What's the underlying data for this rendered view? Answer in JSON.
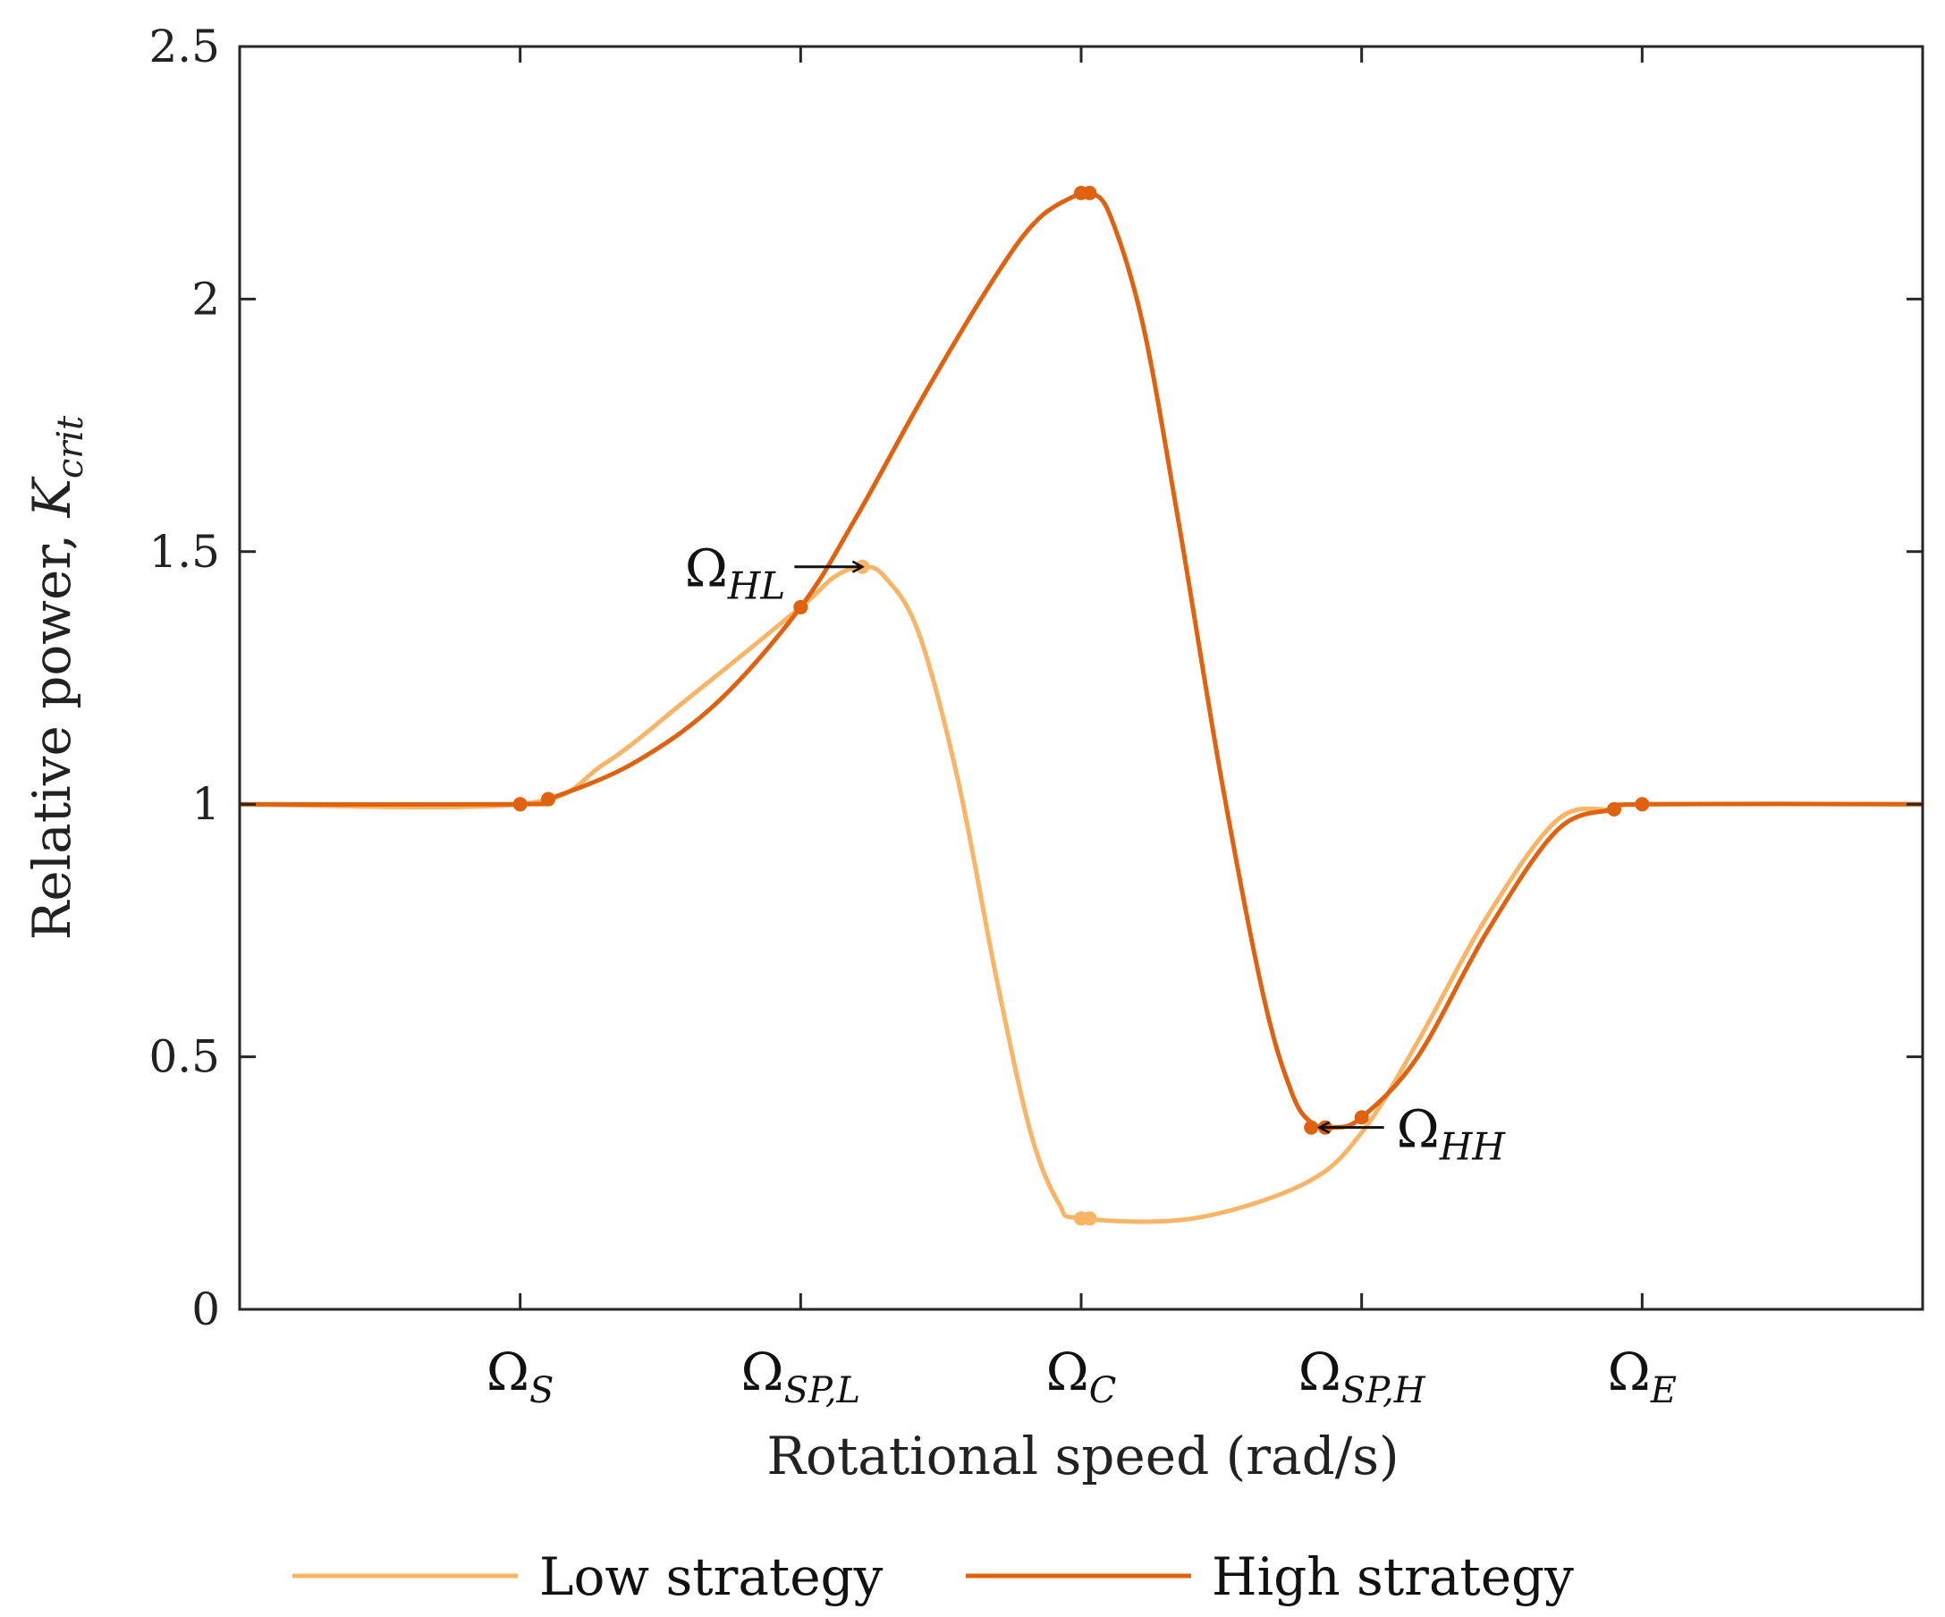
{
  "chart_data": {
    "type": "line",
    "xlabel": "Rotational speed (rad/s)",
    "ylabel_text": "Relative power, ",
    "ylabel_symbol": "K",
    "ylabel_subscript": "crit",
    "ylim": [
      0,
      2.5
    ],
    "xlim": [
      0,
      6
    ],
    "yticks": [
      0,
      0.5,
      1,
      1.5,
      2,
      2.5
    ],
    "ytick_labels": [
      "0",
      "0.5",
      "1",
      "1.5",
      "2",
      "2.5"
    ],
    "xticks": [
      {
        "x": 1,
        "symbol": "Ω",
        "sub": "S"
      },
      {
        "x": 2,
        "symbol": "Ω",
        "sub": "SP,L"
      },
      {
        "x": 3,
        "symbol": "Ω",
        "sub": "C"
      },
      {
        "x": 4,
        "symbol": "Ω",
        "sub": "SP,H"
      },
      {
        "x": 5,
        "symbol": "Ω",
        "sub": "E"
      }
    ],
    "series": [
      {
        "name": "Low strategy",
        "color": "#F9B466",
        "points": [
          [
            0,
            1
          ],
          [
            1,
            1
          ],
          [
            1.3,
            1.08
          ],
          [
            1.6,
            1.21
          ],
          [
            2,
            1.39
          ],
          [
            2.12,
            1.45
          ],
          [
            2.22,
            1.47
          ],
          [
            2.3,
            1.45
          ],
          [
            2.42,
            1.34
          ],
          [
            2.56,
            1.05
          ],
          [
            2.7,
            0.65
          ],
          [
            2.82,
            0.35
          ],
          [
            2.92,
            0.21
          ],
          [
            3.0,
            0.18
          ],
          [
            3.4,
            0.18
          ],
          [
            3.8,
            0.25
          ],
          [
            4.0,
            0.35
          ],
          [
            4.2,
            0.53
          ],
          [
            4.45,
            0.78
          ],
          [
            4.7,
            0.97
          ],
          [
            4.9,
            0.99
          ],
          [
            5,
            1
          ],
          [
            6,
            1
          ]
        ],
        "markers": [
          [
            1,
            1
          ],
          [
            1.1,
            1.01
          ],
          [
            2,
            1.39
          ],
          [
            2.22,
            1.47
          ],
          [
            3.0,
            0.18
          ],
          [
            3.03,
            0.18
          ],
          [
            4.9,
            0.99
          ],
          [
            5,
            1
          ]
        ]
      },
      {
        "name": "High strategy",
        "color": "#E1620E",
        "points": [
          [
            0,
            1
          ],
          [
            1,
            1
          ],
          [
            1.1,
            1.01
          ],
          [
            1.4,
            1.08
          ],
          [
            1.7,
            1.2
          ],
          [
            2,
            1.39
          ],
          [
            2.2,
            1.57
          ],
          [
            2.45,
            1.82
          ],
          [
            2.7,
            2.05
          ],
          [
            2.85,
            2.16
          ],
          [
            3.0,
            2.21
          ],
          [
            3.03,
            2.21
          ],
          [
            3.1,
            2.17
          ],
          [
            3.22,
            1.95
          ],
          [
            3.35,
            1.55
          ],
          [
            3.5,
            1.05
          ],
          [
            3.65,
            0.62
          ],
          [
            3.75,
            0.43
          ],
          [
            3.82,
            0.37
          ],
          [
            3.9,
            0.36
          ],
          [
            4.0,
            0.38
          ],
          [
            4.2,
            0.5
          ],
          [
            4.45,
            0.75
          ],
          [
            4.7,
            0.95
          ],
          [
            4.9,
            0.99
          ],
          [
            5,
            1
          ],
          [
            6,
            1
          ]
        ],
        "markers": [
          [
            1,
            1
          ],
          [
            1.1,
            1.01
          ],
          [
            2,
            1.39
          ],
          [
            3.0,
            2.21
          ],
          [
            3.03,
            2.21
          ],
          [
            3.82,
            0.36
          ],
          [
            3.87,
            0.36
          ],
          [
            4.0,
            0.38
          ],
          [
            4.9,
            0.99
          ],
          [
            5,
            1
          ]
        ]
      }
    ],
    "annotations": [
      {
        "symbol": "Ω",
        "sub": "HL",
        "arrow_to": [
          2.22,
          1.47
        ],
        "side": "left"
      },
      {
        "symbol": "Ω",
        "sub": "HH",
        "arrow_to": [
          3.85,
          0.36
        ],
        "side": "right"
      }
    ],
    "legend": {
      "position": "bottom",
      "entries": [
        "Low strategy",
        "High strategy"
      ]
    }
  }
}
